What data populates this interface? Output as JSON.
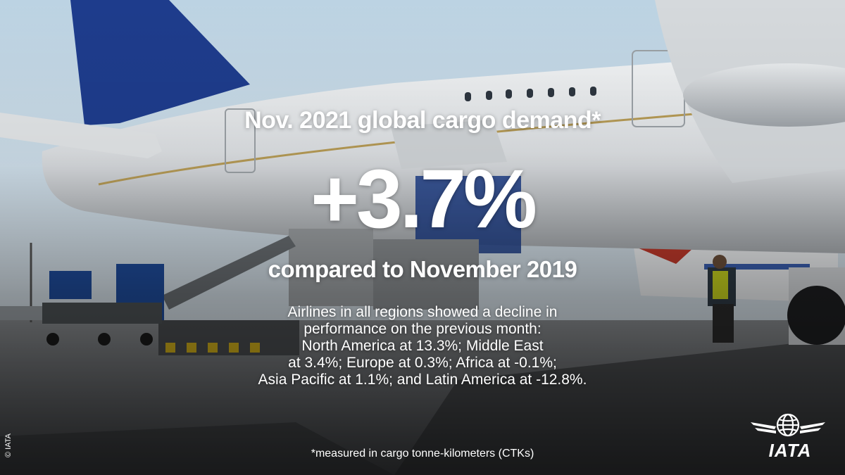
{
  "headline": {
    "title": "Nov. 2021 global cargo demand*",
    "value": "+3.7%",
    "comparison": "compared to November 2019"
  },
  "body": {
    "lines": [
      "Airlines in all regions showed a decline in",
      "performance on the previous month:",
      "North America at 13.3%; Middle East",
      "at 3.4%; Europe at 0.3%; Africa at -0.1%;",
      "Asia Pacific at 1.1%; and Latin America at -12.8%."
    ]
  },
  "footnote": "*measured in cargo tonne-kilometers (CTKs)",
  "copyright": "© IATA",
  "logo": {
    "text": "IATA",
    "icon": "globe-wings-icon"
  },
  "colors": {
    "text": "#ffffff",
    "tail_blue": "#1e3c8c",
    "sky": "#c9d9e6"
  }
}
